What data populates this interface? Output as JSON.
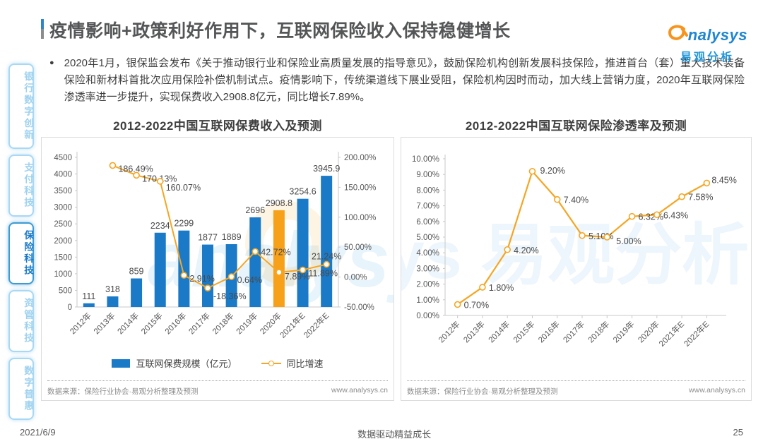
{
  "header": {
    "title": "疫情影响+政策利好作用下，互联网保险收入保持稳健增长"
  },
  "logo": {
    "brand": "nalysys",
    "brand_cn": "易观分析"
  },
  "bullet": {
    "marker": "●",
    "text": "2020年1月，银保监会发布《关于推动银行业和保险业高质量发展的指导意见》，鼓励保险机构创新发展科技保险，推进首台（套）重大技术装备保险和新材料首批次应用保险补偿机制试点。疫情影响下，传统渠道线下展业受阻，保险机构因时而动，加大线上营销力度，2020年互联网保险渗透率进一步提升，实现保费收入2908.8亿元，同比增长7.89%。"
  },
  "sidebar": {
    "items": [
      {
        "label": "银行数字创新",
        "active": false
      },
      {
        "label": "支付科技",
        "active": false
      },
      {
        "label": "保险科技",
        "active": true
      },
      {
        "label": "资管科技",
        "active": false
      },
      {
        "label": "数字普惠",
        "active": false
      }
    ]
  },
  "chart_data": [
    {
      "type": "bar",
      "title": "2012-2022中国互联网保费收入及预测",
      "categories": [
        "2012年",
        "2013年",
        "2014年",
        "2015年",
        "2016年",
        "2017年",
        "2018年",
        "2019年",
        "2020年",
        "2021年E",
        "2022年E"
      ],
      "series": [
        {
          "name": "互联网保费规模（亿元）",
          "type": "bar",
          "values": [
            111,
            318,
            859,
            2234,
            2299,
            1877,
            1889,
            2696,
            2908.8,
            3254.6,
            3945.9
          ],
          "labels": [
            "111",
            "318",
            "859",
            "2234",
            "2299",
            "1877",
            "1889",
            "2696",
            "2908.8",
            "3254.6",
            "3945.9"
          ],
          "color": "#1b7ac8",
          "highlight_index": 8,
          "highlight_color": "#f7a11a",
          "axis": "left"
        },
        {
          "name": "同比增速",
          "type": "line",
          "values": [
            null,
            186.49,
            170.13,
            160.07,
            2.91,
            -18.36,
            0.64,
            42.72,
            7.89,
            11.89,
            21.24
          ],
          "labels": [
            null,
            "186.49%",
            "170.13%",
            "160.07%",
            "2.91%",
            "-18.36%",
            "0.64%",
            "42.72%",
            "7.89%",
            "11.89%",
            "21.24%"
          ],
          "color": "#f5a623",
          "axis": "right"
        }
      ],
      "left_axis": {
        "min": 0,
        "max": 4500,
        "step": 500
      },
      "right_axis": {
        "min": -50,
        "max": 200,
        "step": 50,
        "format": "percent2"
      },
      "grid": false,
      "legend_position": "bottom"
    },
    {
      "type": "line",
      "title": "2012-2022中国互联网保险渗透率及预测",
      "categories": [
        "2012年",
        "2013年",
        "2014年",
        "2015年",
        "2016年",
        "2017年",
        "2018年",
        "2019年",
        "2020年",
        "2021年E",
        "2022年E"
      ],
      "series": [
        {
          "name": "互联网保险渗透率",
          "values": [
            0.7,
            1.8,
            4.2,
            9.2,
            7.4,
            5.1,
            5.0,
            6.32,
            6.43,
            7.58,
            8.45
          ],
          "labels": [
            "0.70%",
            "1.80%",
            "4.20%",
            "9.20%",
            "7.40%",
            "5.10%",
            "5.00%",
            "6.32%",
            "6.43%",
            "7.58%",
            "8.45%"
          ],
          "color": "#f5a623"
        }
      ],
      "y_axis": {
        "min": 0,
        "max": 10,
        "step": 1,
        "format": "percent2"
      },
      "grid": false,
      "legend_position": "none"
    }
  ],
  "panels": {
    "left": {
      "source": "数据来源：保险行业协会·易观分析整理及预测",
      "website": "www.analysys.cn"
    },
    "right": {
      "source": "数据来源：保险行业协会·易观分析整理及预测",
      "website": "www.analysys.cn"
    }
  },
  "footer": {
    "date": "2021/6/9",
    "center": "数据驱动精益成长",
    "page_number": "25"
  },
  "colors": {
    "bar_blue": "#1b7ac8",
    "highlight_orange": "#f7a11a",
    "line_orange": "#f5a623",
    "brand_blue": "#1e86d2",
    "brand_swirl_orange": "#f7941e",
    "axis_text": "#595959",
    "label_text": "#4a4a4a",
    "sidebar_active": "#1b7ac8"
  }
}
